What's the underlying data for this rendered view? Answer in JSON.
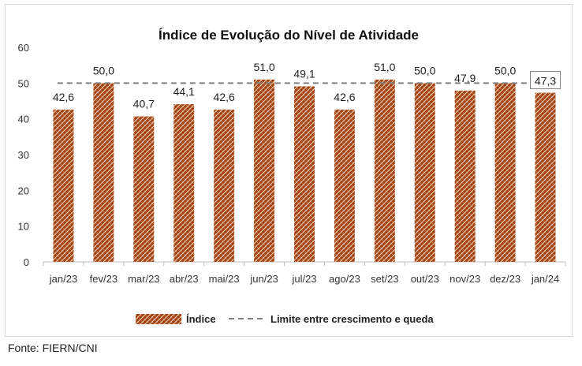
{
  "chart_data": {
    "type": "bar",
    "title": "Índice de Evolução do Nível de Atividade",
    "categories": [
      "jan/23",
      "fev/23",
      "mar/23",
      "abr/23",
      "mai/23",
      "jun/23",
      "jul/23",
      "ago/23",
      "set/23",
      "out/23",
      "nov/23",
      "dez/23",
      "jan/24"
    ],
    "series": [
      {
        "name": "Índice",
        "values": [
          42.6,
          50.0,
          40.7,
          44.1,
          42.6,
          51.0,
          49.1,
          42.6,
          51.0,
          50.0,
          47.9,
          50.0,
          47.3
        ],
        "labels": [
          "42,6",
          "50,0",
          "40,7",
          "44,1",
          "42,6",
          "51,0",
          "49,1",
          "42,6",
          "51,0",
          "50,0",
          "47,9",
          "50,0",
          "47,3"
        ]
      }
    ],
    "reference_line": {
      "name": "Limite entre crescimento e queda",
      "value": 50
    },
    "ylim": [
      0,
      60
    ],
    "yticks": [
      "0",
      "10",
      "20",
      "30",
      "40",
      "50",
      "60"
    ],
    "grid": false,
    "legend_position": "bottom",
    "colors": {
      "bar": "#a0410f",
      "hatch": "#f3d2bc",
      "reference_line": "#7f7f7f"
    }
  },
  "source": "Fonte: FIERN/CNI"
}
